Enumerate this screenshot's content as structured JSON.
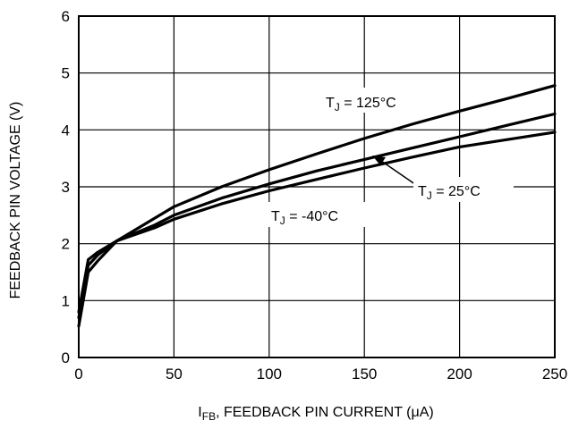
{
  "chart_data": {
    "type": "line",
    "title": "",
    "xlabel": "I_FB, FEEDBACK PIN CURRENT (μA)",
    "xlabel_parts": {
      "main": "I",
      "sub": "FB",
      "rest": ", FEEDBACK PIN CURRENT (μA)"
    },
    "ylabel": "FEEDBACK PIN VOLTAGE (V)",
    "xlim": [
      0,
      250
    ],
    "ylim": [
      0,
      6
    ],
    "x_ticks": [
      0,
      50,
      100,
      150,
      200,
      250
    ],
    "y_ticks": [
      0,
      1,
      2,
      3,
      4,
      5,
      6
    ],
    "x_tick_labels": [
      "0",
      "50",
      "100",
      "150",
      "200",
      "250"
    ],
    "y_tick_labels": [
      "0",
      "1",
      "2",
      "3",
      "4",
      "5",
      "6"
    ],
    "grid": true,
    "legend": "none",
    "line_color": "#000000",
    "series": [
      {
        "name": "T_J = 125°C",
        "x": [
          0,
          5,
          10,
          20,
          40,
          50,
          75,
          100,
          125,
          150,
          175,
          200,
          225,
          250
        ],
        "y": [
          0.55,
          1.5,
          1.7,
          2.05,
          2.45,
          2.65,
          3.0,
          3.3,
          3.58,
          3.85,
          4.1,
          4.33,
          4.55,
          4.78
        ]
      },
      {
        "name": "T_J = 25°C",
        "x": [
          0,
          5,
          10,
          20,
          40,
          50,
          75,
          100,
          125,
          150,
          175,
          200,
          225,
          250
        ],
        "y": [
          0.7,
          1.62,
          1.8,
          2.05,
          2.33,
          2.5,
          2.8,
          3.05,
          3.28,
          3.48,
          3.68,
          3.88,
          4.08,
          4.28
        ]
      },
      {
        "name": "T_J = -40°C",
        "x": [
          0,
          5,
          10,
          20,
          40,
          50,
          75,
          100,
          125,
          150,
          175,
          200,
          225,
          250
        ],
        "y": [
          0.8,
          1.72,
          1.85,
          2.05,
          2.28,
          2.43,
          2.7,
          2.93,
          3.13,
          3.33,
          3.52,
          3.7,
          3.83,
          3.96
        ]
      }
    ],
    "annotations": [
      {
        "series": 0,
        "main": "T",
        "sub": "J",
        "rest": " = 125°C"
      },
      {
        "series": 1,
        "main": "T",
        "sub": "J",
        "rest": " = 25°C"
      },
      {
        "series": 2,
        "main": "T",
        "sub": "J",
        "rest": " = -40°C"
      }
    ]
  }
}
